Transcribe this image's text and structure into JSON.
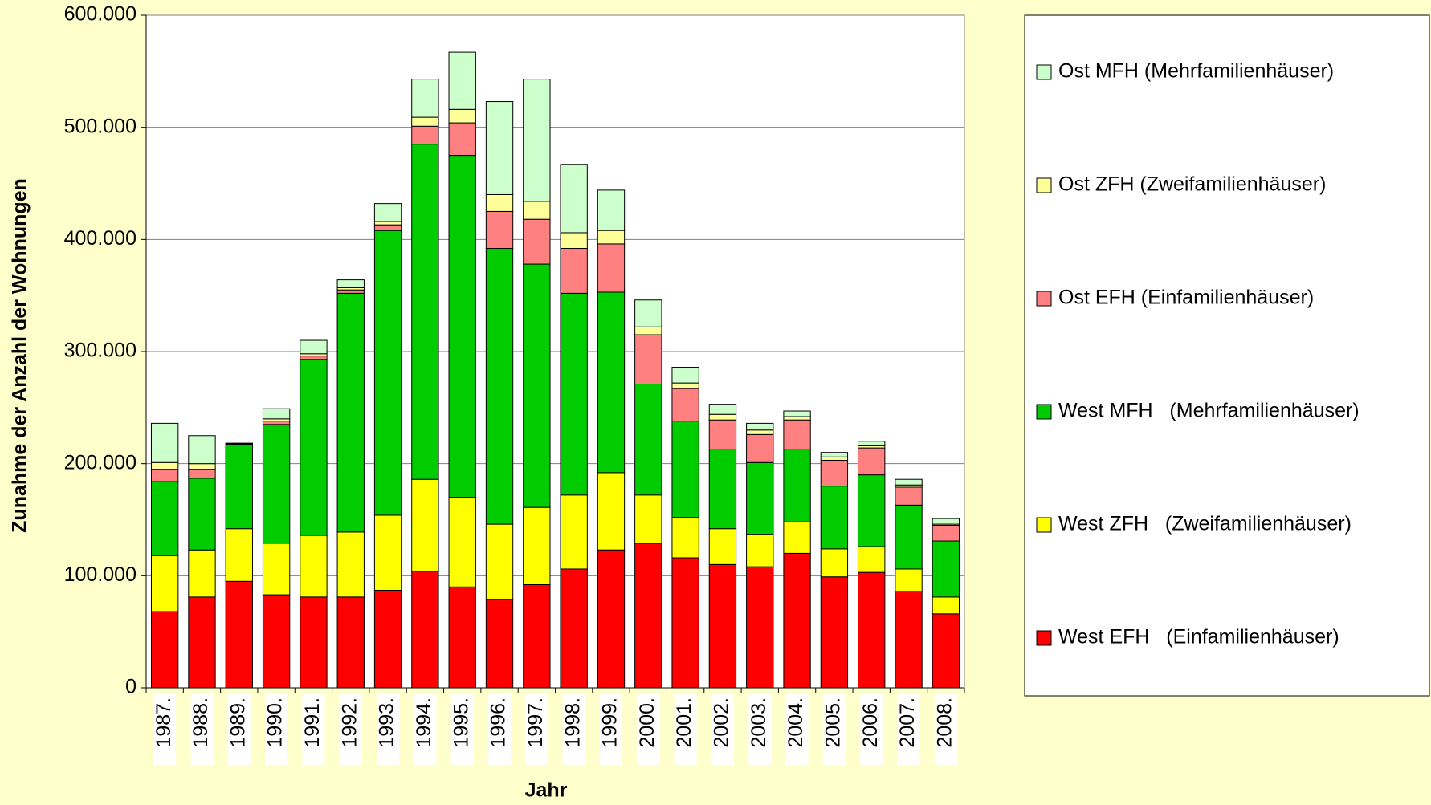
{
  "chart_data": {
    "type": "stacked-bar",
    "x_label": "Jahr",
    "y_label": "Zunahme der Anzahl der Wohnungen",
    "categories": [
      "1987.",
      "1988.",
      "1989.",
      "1990.",
      "1991.",
      "1992.",
      "1993.",
      "1994.",
      "1995.",
      "1996.",
      "1997.",
      "1998.",
      "1999.",
      "2000.",
      "2001.",
      "2002.",
      "2003.",
      "2004.",
      "2005.",
      "2006.",
      "2007.",
      "2008."
    ],
    "series": [
      {
        "name": "West EFH   (Einfamilienhäuser)",
        "color": "#ff0000",
        "values": [
          68000,
          81000,
          95000,
          83000,
          81000,
          81000,
          87000,
          104000,
          90000,
          79000,
          92000,
          106000,
          123000,
          129000,
          116000,
          110000,
          108000,
          120000,
          99000,
          103000,
          86000,
          66000
        ]
      },
      {
        "name": "West ZFH   (Zweifamilienhäuser)",
        "color": "#ffff00",
        "values": [
          50000,
          42000,
          47000,
          46000,
          55000,
          58000,
          67000,
          82000,
          80000,
          67000,
          69000,
          66000,
          69000,
          43000,
          36000,
          32000,
          29000,
          28000,
          25000,
          23000,
          20000,
          15000
        ]
      },
      {
        "name": "West MFH   (Mehrfamilienhäuser)",
        "color": "#00cc00",
        "values": [
          66000,
          64000,
          75000,
          106000,
          157000,
          213000,
          254000,
          299000,
          305000,
          246000,
          217000,
          180000,
          161000,
          99000,
          86000,
          71000,
          64000,
          65000,
          56000,
          64000,
          57000,
          50000
        ]
      },
      {
        "name": "Ost EFH (Einfamilienhäuser)",
        "color": "#ff8080",
        "values": [
          11000,
          8000,
          500,
          3000,
          3000,
          3000,
          5000,
          16000,
          29000,
          33000,
          40000,
          40000,
          43000,
          44000,
          29000,
          26000,
          25000,
          26000,
          23000,
          24000,
          16000,
          14000
        ]
      },
      {
        "name": "Ost ZFH (Zweifamilienhäuser)",
        "color": "#ffff99",
        "values": [
          6000,
          5000,
          300,
          2000,
          2000,
          2000,
          3000,
          8000,
          12000,
          15000,
          16000,
          14000,
          12000,
          7000,
          5000,
          5000,
          4000,
          3000,
          3000,
          2000,
          2000,
          1000
        ]
      },
      {
        "name": "Ost MFH (Mehrfamilienhäuser)",
        "color": "#ccffcc",
        "values": [
          35000,
          25000,
          500,
          9000,
          12000,
          7000,
          16000,
          34000,
          51000,
          83000,
          109000,
          61000,
          36000,
          24000,
          14000,
          9000,
          6000,
          5000,
          4000,
          4000,
          5000,
          5000
        ]
      }
    ],
    "ylim": [
      0,
      600000
    ],
    "yticks": [
      0,
      {
        "value": 100000,
        "label": "100.000"
      },
      {
        "value": 200000,
        "label": "200.000"
      },
      {
        "value": 300000,
        "label": "300.000"
      },
      {
        "value": 400000,
        "label": "400.000"
      },
      {
        "value": 500000,
        "label": "500.000"
      },
      {
        "value": 600000,
        "label": "600.000"
      }
    ],
    "grid": true,
    "legend": "right"
  }
}
